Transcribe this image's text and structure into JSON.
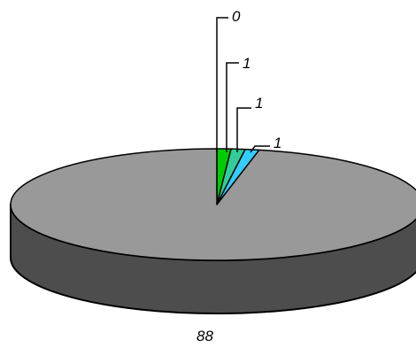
{
  "chart_data": {
    "type": "pie",
    "style": "3d",
    "title": "",
    "categories": [
      "",
      "",
      "",
      "",
      ""
    ],
    "values": [
      88,
      0,
      1,
      1,
      1
    ],
    "data_labels": [
      "88",
      "0",
      "1",
      "1",
      "1"
    ],
    "colors": [
      "#999999",
      "#ffff00",
      "#00cc00",
      "#33cc99",
      "#33ccff"
    ],
    "side_color": "#4d4d4d",
    "outline_color": "#000000",
    "legend": "none"
  }
}
